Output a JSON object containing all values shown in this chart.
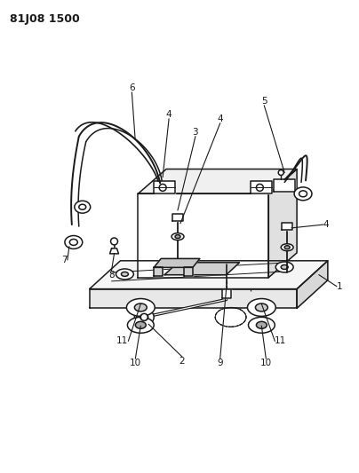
{
  "title": "81J08 1500",
  "bg_color": "#ffffff",
  "line_color": "#1a1a1a",
  "figsize": [
    4.04,
    5.33
  ],
  "dpi": 100,
  "label_fontsize": 7.5,
  "title_fontsize": 9
}
